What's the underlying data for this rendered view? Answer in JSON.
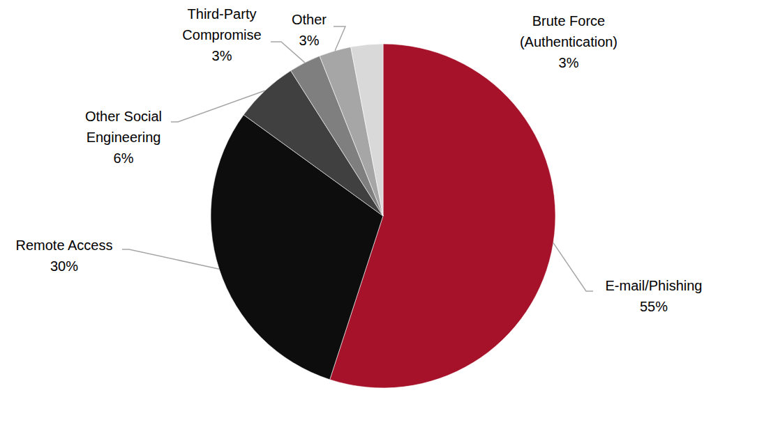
{
  "chart_data": {
    "type": "pie",
    "categories": [
      "E-mail/Phishing",
      "Remote Access",
      "Other Social Engineering",
      "Third-Party Compromise",
      "Other",
      "Brute Force (Authentication)"
    ],
    "values": [
      55,
      30,
      6,
      3,
      3,
      3
    ],
    "value_labels": [
      "55%",
      "30%",
      "6%",
      "3%",
      "3%",
      "3%"
    ],
    "colors": [
      "#a6122a",
      "#0d0d0d",
      "#404040",
      "#7f7f7f",
      "#a6a6a6",
      "#d9d9d9"
    ],
    "data_labels": true
  }
}
